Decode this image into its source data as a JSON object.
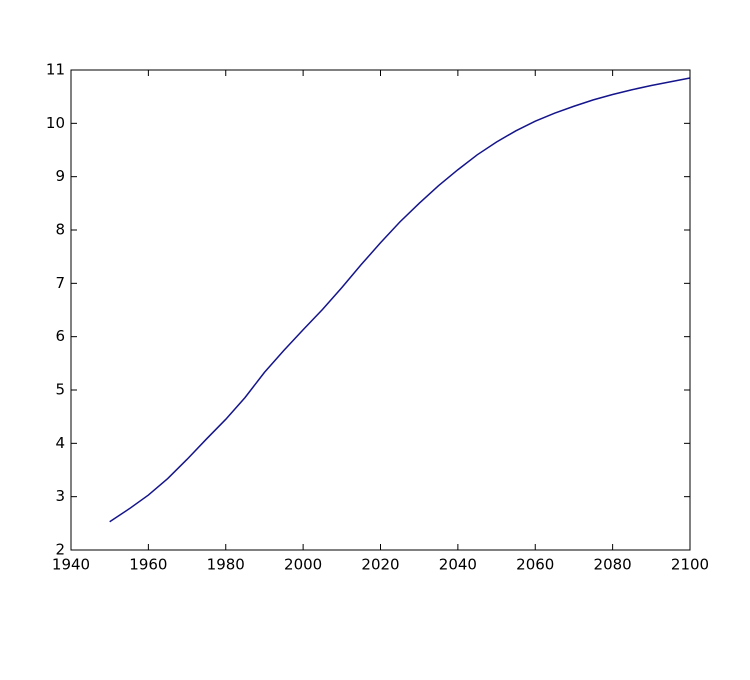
{
  "chart_data": {
    "type": "line",
    "x": [
      1950,
      1955,
      1960,
      1965,
      1970,
      1975,
      1980,
      1985,
      1990,
      1995,
      2000,
      2005,
      2010,
      2015,
      2020,
      2025,
      2030,
      2035,
      2040,
      2045,
      2050,
      2055,
      2060,
      2065,
      2070,
      2075,
      2080,
      2085,
      2090,
      2095,
      2100
    ],
    "series": [
      {
        "color": "#14148c",
        "values": [
          2.53,
          2.77,
          3.03,
          3.34,
          3.7,
          4.08,
          4.45,
          4.86,
          5.33,
          5.74,
          6.13,
          6.51,
          6.92,
          7.35,
          7.76,
          8.15,
          8.5,
          8.83,
          9.13,
          9.41,
          9.65,
          9.86,
          10.04,
          10.19,
          10.32,
          10.44,
          10.54,
          10.63,
          10.71,
          10.78,
          10.85
        ]
      }
    ],
    "xlim": [
      1940,
      2100
    ],
    "xticks": [
      1940,
      1960,
      1980,
      2000,
      2020,
      2040,
      2060,
      2080,
      2100
    ],
    "ylim": [
      2,
      11
    ],
    "yticks": [
      2,
      3,
      4,
      5,
      6,
      7,
      8,
      9,
      10,
      11
    ]
  }
}
